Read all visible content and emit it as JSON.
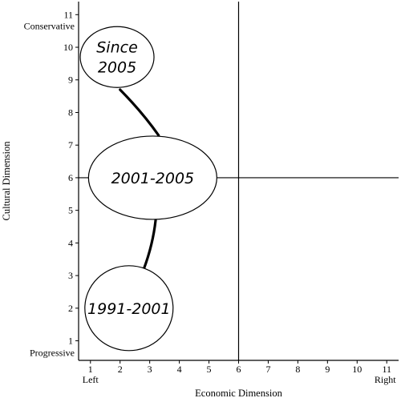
{
  "chart_data": {
    "type": "scatter",
    "title": "",
    "xlabel": "Economic Dimension",
    "ylabel": "Cultural Dimension",
    "xlim": [
      0.6,
      11.4
    ],
    "ylim": [
      0.4,
      11.4
    ],
    "x_ticks": [
      1,
      2,
      3,
      4,
      5,
      6,
      7,
      8,
      9,
      10,
      11
    ],
    "y_ticks": [
      1,
      2,
      3,
      4,
      5,
      6,
      7,
      8,
      9,
      10,
      11
    ],
    "x_end_labels": {
      "left": "Left",
      "right": "Right"
    },
    "y_end_labels": {
      "top": "Conservative",
      "bottom": "Progressive"
    },
    "reference_lines": {
      "vertical_x": 6,
      "horizontal_y": 6
    },
    "grid": false,
    "periods": [
      {
        "label_lines": [
          "Since",
          "2005"
        ],
        "x": 1.9,
        "y": 9.7
      },
      {
        "label_lines": [
          "2001-2005"
        ],
        "x": 3.1,
        "y": 6.0
      },
      {
        "label_lines": [
          "1991-2001"
        ],
        "x": 2.3,
        "y": 2.0
      }
    ],
    "path": [
      {
        "from": [
          2.0,
          8.7
        ],
        "to": [
          3.3,
          7.3
        ]
      },
      {
        "from": [
          3.2,
          4.7
        ],
        "to": [
          2.8,
          3.2
        ]
      }
    ]
  }
}
